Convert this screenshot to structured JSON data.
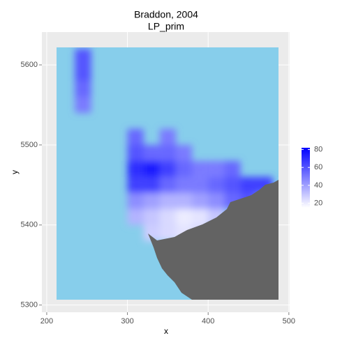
{
  "chart_data": {
    "type": "raster",
    "title": "Braddon, 2004",
    "subtitle": "LP_prim",
    "x_label": "x",
    "y_label": "y",
    "xlim": [
      194,
      501
    ],
    "ylim": [
      5291,
      5641
    ],
    "xticks": [
      200,
      300,
      400,
      500
    ],
    "yticks": [
      5300,
      5400,
      5500,
      5600
    ],
    "grid": true,
    "cells": {
      "x": [
        300,
        340,
        300,
        320,
        340,
        360,
        300,
        320,
        340,
        360,
        380,
        400,
        420,
        300,
        320,
        340,
        360,
        380,
        400,
        420,
        440,
        460,
        300,
        320,
        340,
        360,
        380,
        400,
        420,
        440,
        300,
        320,
        340,
        360,
        380,
        400,
        320,
        340,
        360,
        380,
        235,
        235,
        235,
        235
      ],
      "y": [
        5500,
        5500,
        5480,
        5480,
        5480,
        5480,
        5460,
        5460,
        5460,
        5460,
        5460,
        5460,
        5460,
        5440,
        5440,
        5440,
        5440,
        5440,
        5440,
        5440,
        5440,
        5440,
        5420,
        5420,
        5420,
        5420,
        5420,
        5420,
        5420,
        5420,
        5400,
        5400,
        5400,
        5400,
        5400,
        5400,
        5380,
        5380,
        5380,
        5380,
        5600,
        5580,
        5560,
        5540
      ],
      "values": [
        55,
        50,
        60,
        55,
        55,
        50,
        70,
        75,
        65,
        55,
        50,
        50,
        55,
        65,
        65,
        55,
        50,
        50,
        55,
        60,
        65,
        65,
        45,
        40,
        35,
        35,
        40,
        45,
        55,
        60,
        35,
        30,
        25,
        20,
        22,
        30,
        28,
        25,
        22,
        25,
        60,
        60,
        55,
        50
      ]
    },
    "sea_color": "#87ceeb",
    "land_color": "#636363",
    "low_color": "#ffffff",
    "high_color": "#0000ff",
    "clim": [
      15,
      82
    ],
    "cticks": [
      20,
      40,
      60,
      80
    ]
  }
}
